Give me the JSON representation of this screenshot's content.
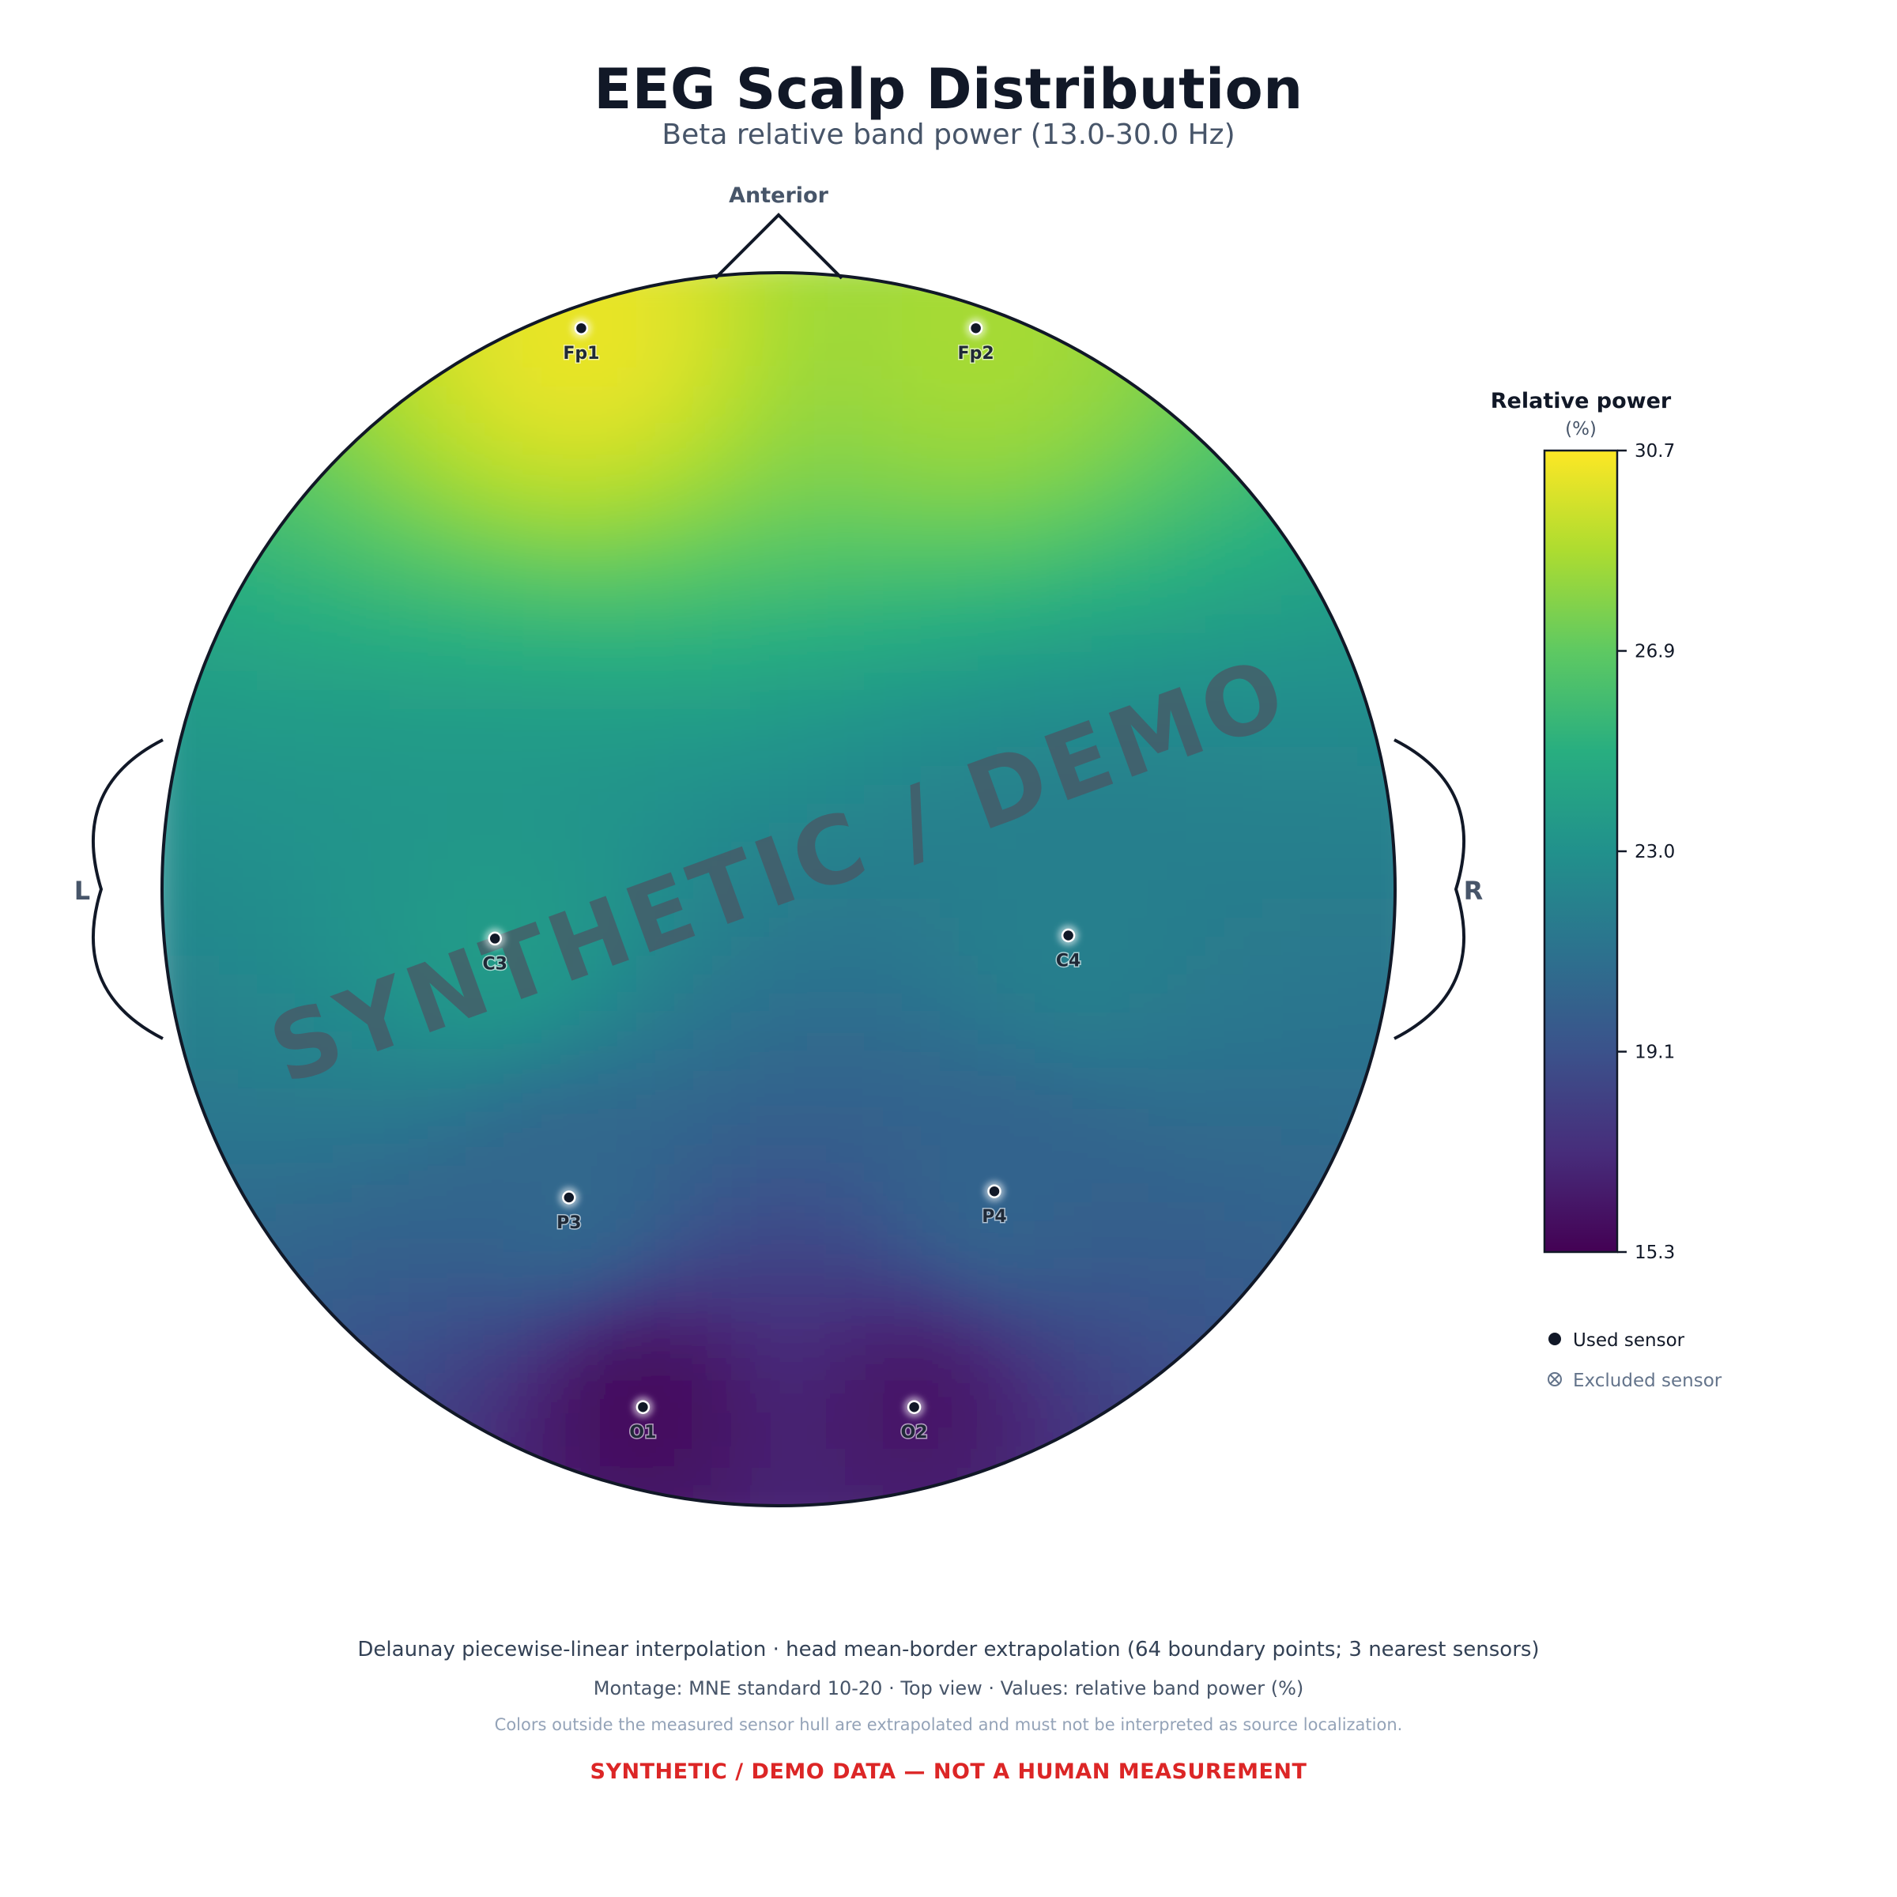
{
  "header": {
    "title": "EEG Scalp Distribution",
    "subtitle": "Beta relative band power (13.0-30.0 Hz)"
  },
  "orientation": {
    "anterior": "Anterior",
    "left": "L",
    "right": "R"
  },
  "watermark": "SYNTHETIC / DEMO",
  "colorbar": {
    "title": "Relative power",
    "unit": "(%)",
    "ticks": [
      "30.7",
      "26.9",
      "23.0",
      "19.1",
      "15.3"
    ],
    "colormap": "viridis"
  },
  "legend": {
    "used": "Used sensor",
    "excluded": "Excluded sensor"
  },
  "chart_data": {
    "type": "heatmap",
    "kind": "topographic scalp map",
    "value_range": [
      15.3,
      30.7
    ],
    "sensors": [
      {
        "name": "Fp1",
        "x": -0.32,
        "y": 0.91,
        "value": 30.2
      },
      {
        "name": "Fp2",
        "x": 0.32,
        "y": 0.91,
        "value": 28.6
      },
      {
        "name": "C3",
        "x": -0.46,
        "y": -0.08,
        "value": 23.6
      },
      {
        "name": "C4",
        "x": 0.47,
        "y": -0.075,
        "value": 21.9
      },
      {
        "name": "P3",
        "x": -0.34,
        "y": -0.5,
        "value": 20.4
      },
      {
        "name": "P4",
        "x": 0.35,
        "y": -0.49,
        "value": 20.2
      },
      {
        "name": "O1",
        "x": -0.22,
        "y": -0.84,
        "value": 15.8
      },
      {
        "name": "O2",
        "x": 0.22,
        "y": -0.84,
        "value": 16.3
      }
    ]
  },
  "footer": {
    "line1": "Delaunay piecewise-linear interpolation · head mean-border extrapolation (64 boundary points; 3 nearest sensors)",
    "line2": "Montage: MNE standard 10-20 · Top view · Values: relative band power (%)",
    "line3": "Colors outside the measured sensor hull are extrapolated and must not be interpreted as source localization.",
    "warning": "SYNTHETIC / DEMO DATA — NOT A HUMAN MEASUREMENT"
  }
}
